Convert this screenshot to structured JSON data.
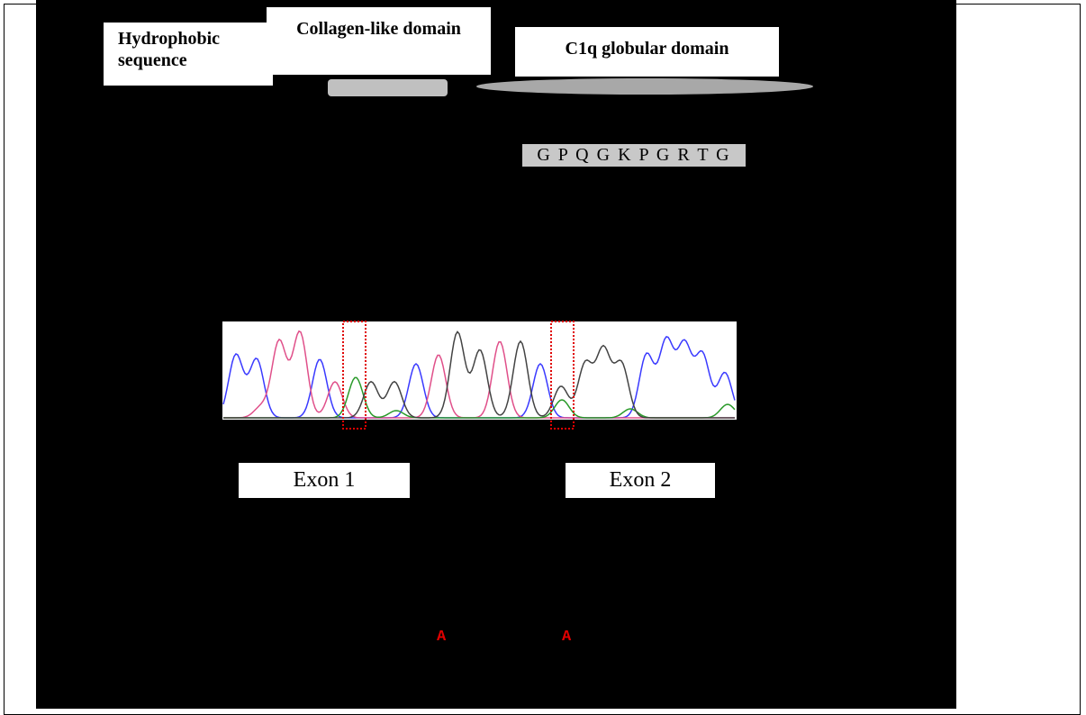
{
  "domains": [
    {
      "label": "Hydrophobic sequence"
    },
    {
      "label": "Collagen-like domain"
    },
    {
      "label": "C1q globular domain"
    }
  ],
  "sequence": "G P Q G K P G R T G",
  "exons": [
    "Exon 1",
    "Exon 2"
  ],
  "mutations": [
    "A",
    "A"
  ]
}
